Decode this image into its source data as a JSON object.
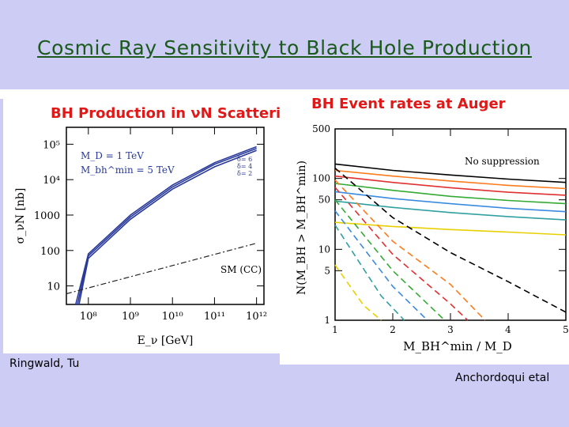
{
  "slide": {
    "title": "Cosmic Ray Sensitivity to Black Hole Production",
    "caption_left": "Ringwald, Tu",
    "caption_right": "Anchordoqui etal"
  },
  "chart_data": [
    {
      "type": "line",
      "title": "BH Production in νN Scattering",
      "xlabel": "E_ν [GeV]",
      "ylabel": "σ_νN [nb]",
      "xscale": "log",
      "yscale": "log",
      "xlim": [
        30000000.0,
        1500000000000.0
      ],
      "ylim": [
        3,
        300000.0
      ],
      "xticks": [
        100000000.0,
        1000000000.0,
        10000000000.0,
        100000000000.0,
        1000000000000.0
      ],
      "xtick_labels": [
        "10⁸",
        "10⁹",
        "10¹⁰",
        "10¹¹",
        "10¹²"
      ],
      "yticks": [
        10,
        100,
        1000,
        10000,
        100000
      ],
      "ytick_labels": [
        "10",
        "100",
        "1000",
        "10⁴",
        "10⁵"
      ],
      "parameters": [
        "M_D = 1 TeV",
        "M_bh^min = 5 TeV"
      ],
      "series_labels": [
        "δ= 6",
        "δ= 4",
        "δ= 2"
      ],
      "annotation": "SM (CC)",
      "series": [
        {
          "name": "δ= 6",
          "style": "solid",
          "x": [
            50000000.0,
            100000000.0,
            1000000000.0,
            10000000000.0,
            100000000000.0,
            1000000000000.0
          ],
          "y": [
            3,
            80,
            1000,
            7000,
            30000,
            85000
          ]
        },
        {
          "name": "δ= 4",
          "style": "solid",
          "x": [
            55000000.0,
            100000000.0,
            1000000000.0,
            10000000000.0,
            100000000000.0,
            1000000000000.0
          ],
          "y": [
            3,
            70,
            880,
            6200,
            27000,
            76000
          ]
        },
        {
          "name": "δ= 2",
          "style": "solid",
          "x": [
            60000000.0,
            100000000.0,
            1000000000.0,
            10000000000.0,
            100000000000.0,
            1000000000000.0
          ],
          "y": [
            3,
            60,
            760,
            5400,
            23000,
            67000
          ]
        },
        {
          "name": "SM (CC)",
          "style": "dashdot",
          "x": [
            30000000.0,
            1000000000000.0
          ],
          "y": [
            6,
            160
          ]
        }
      ],
      "colors": {
        "curves": "#2a3a9a",
        "sm": "#222222",
        "title": "#e01818"
      }
    },
    {
      "type": "line",
      "title": "BH Event rates at Auger",
      "xlabel": "M_BH^min / M_D",
      "ylabel": "N(M_BH > M_BH^min)",
      "yscale": "log",
      "xlim": [
        1,
        5
      ],
      "ylim": [
        1,
        500
      ],
      "xticks": [
        1,
        2,
        3,
        4,
        5
      ],
      "xtick_labels": [
        "1",
        "2",
        "3",
        "4",
        "5"
      ],
      "yticks": [
        1,
        5,
        10,
        50,
        100,
        500
      ],
      "ytick_labels": [
        "1",
        "5",
        "10",
        "50",
        "100",
        "500"
      ],
      "annotation": "No suppression",
      "series": [
        {
          "style": "solid",
          "color": "#000000",
          "x": [
            1,
            2,
            3,
            4,
            5
          ],
          "y": [
            160,
            130,
            112,
            98,
            88
          ]
        },
        {
          "style": "solid",
          "color": "#ff7a1a",
          "x": [
            1,
            2,
            3,
            4,
            5
          ],
          "y": [
            130,
            108,
            92,
            80,
            72
          ]
        },
        {
          "style": "solid",
          "color": "#e03030",
          "x": [
            1,
            2,
            3,
            4,
            5
          ],
          "y": [
            108,
            88,
            74,
            64,
            58
          ]
        },
        {
          "style": "solid",
          "color": "#33aa33",
          "x": [
            1,
            2,
            3,
            4,
            5
          ],
          "y": [
            85,
            68,
            56,
            49,
            44
          ]
        },
        {
          "style": "solid",
          "color": "#3a8ae0",
          "x": [
            1,
            2,
            3,
            4,
            5
          ],
          "y": [
            65,
            52,
            44,
            38,
            34
          ]
        },
        {
          "style": "solid",
          "color": "#30a0a0",
          "x": [
            1,
            2,
            3,
            4,
            5
          ],
          "y": [
            48,
            39,
            33,
            29,
            26
          ]
        },
        {
          "style": "solid",
          "color": "#e8d000",
          "x": [
            1,
            2,
            3,
            4,
            5
          ],
          "y": [
            24,
            21,
            19,
            17.5,
            16
          ]
        },
        {
          "style": "dashed",
          "color": "#000000",
          "x": [
            1,
            2,
            3,
            4,
            5
          ],
          "y": [
            140,
            28,
            9,
            3.5,
            1.3
          ]
        },
        {
          "style": "dashed",
          "color": "#ff7a1a",
          "x": [
            1,
            2,
            3,
            3.6
          ],
          "y": [
            95,
            13,
            3.2,
            1
          ]
        },
        {
          "style": "dashed",
          "color": "#e03030",
          "x": [
            1,
            2,
            3,
            3.3
          ],
          "y": [
            75,
            8.5,
            1.7,
            1
          ]
        },
        {
          "style": "dashed",
          "color": "#33aa33",
          "x": [
            1,
            2,
            2.9
          ],
          "y": [
            50,
            5,
            1
          ]
        },
        {
          "style": "dashed",
          "color": "#3a8ae0",
          "x": [
            1,
            2,
            2.6
          ],
          "y": [
            35,
            3,
            1
          ]
        },
        {
          "style": "dashed",
          "color": "#30a0a0",
          "x": [
            1,
            1.8,
            2.2
          ],
          "y": [
            22,
            2.2,
            1
          ]
        },
        {
          "style": "dashed",
          "color": "#e8d000",
          "x": [
            1,
            1.5,
            1.8
          ],
          "y": [
            6,
            1.6,
            1
          ]
        }
      ]
    }
  ]
}
